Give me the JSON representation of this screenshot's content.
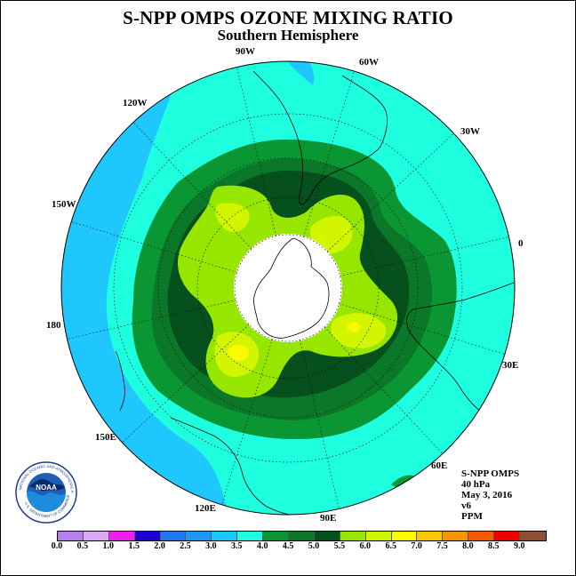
{
  "title": "S-NPP OMPS OZONE MIXING RATIO",
  "subtitle": "Southern Hemisphere",
  "longitude_labels": [
    "90W",
    "60W",
    "30W",
    "0",
    "30E",
    "60E",
    "90E",
    "120E",
    "150E",
    "180",
    "150W",
    "120W"
  ],
  "info": {
    "instrument": "S-NPP OMPS",
    "level": "40 hPa",
    "date": "May 3, 2016",
    "version": "v6",
    "units": "PPM"
  },
  "logo": {
    "text": "NOAA",
    "ring_text_top": "NATIONAL OCEANIC AND ATMOSPHERIC ADMINISTRATION",
    "ring_text_bottom": "U.S. DEPARTMENT OF COMMERCE"
  },
  "colorbar": {
    "ticks": [
      "0.0",
      "0.5",
      "1.0",
      "1.5",
      "2.0",
      "2.5",
      "3.0",
      "3.5",
      "4.0",
      "4.5",
      "5.0",
      "5.5",
      "6.0",
      "6.5",
      "7.0",
      "7.5",
      "8.0",
      "8.5",
      "9.0"
    ],
    "colors": [
      "#b57ff0",
      "#dcaaf5",
      "#f01ef0",
      "#1e00d2",
      "#1e78f0",
      "#1e96f5",
      "#1ec8ff",
      "#1effe0",
      "#0a9632",
      "#0a7828",
      "#06501e",
      "#96e600",
      "#d2f500",
      "#fafa00",
      "#f5c800",
      "#f59600",
      "#f55a00",
      "#f00000",
      "#8c5032"
    ],
    "min": 0.0,
    "max": 9.0
  },
  "colors": {
    "outer_band": "#1ec8ff",
    "band_3_5": "#1effe0",
    "band_4_0": "#0a9632",
    "band_4_5": "#0a7828",
    "band_5_0": "#06501e",
    "band_5_5": "#96e600",
    "band_6_0": "#d2f500",
    "band_6_5": "#fafa00",
    "polar_no_data": "#ffffff"
  }
}
